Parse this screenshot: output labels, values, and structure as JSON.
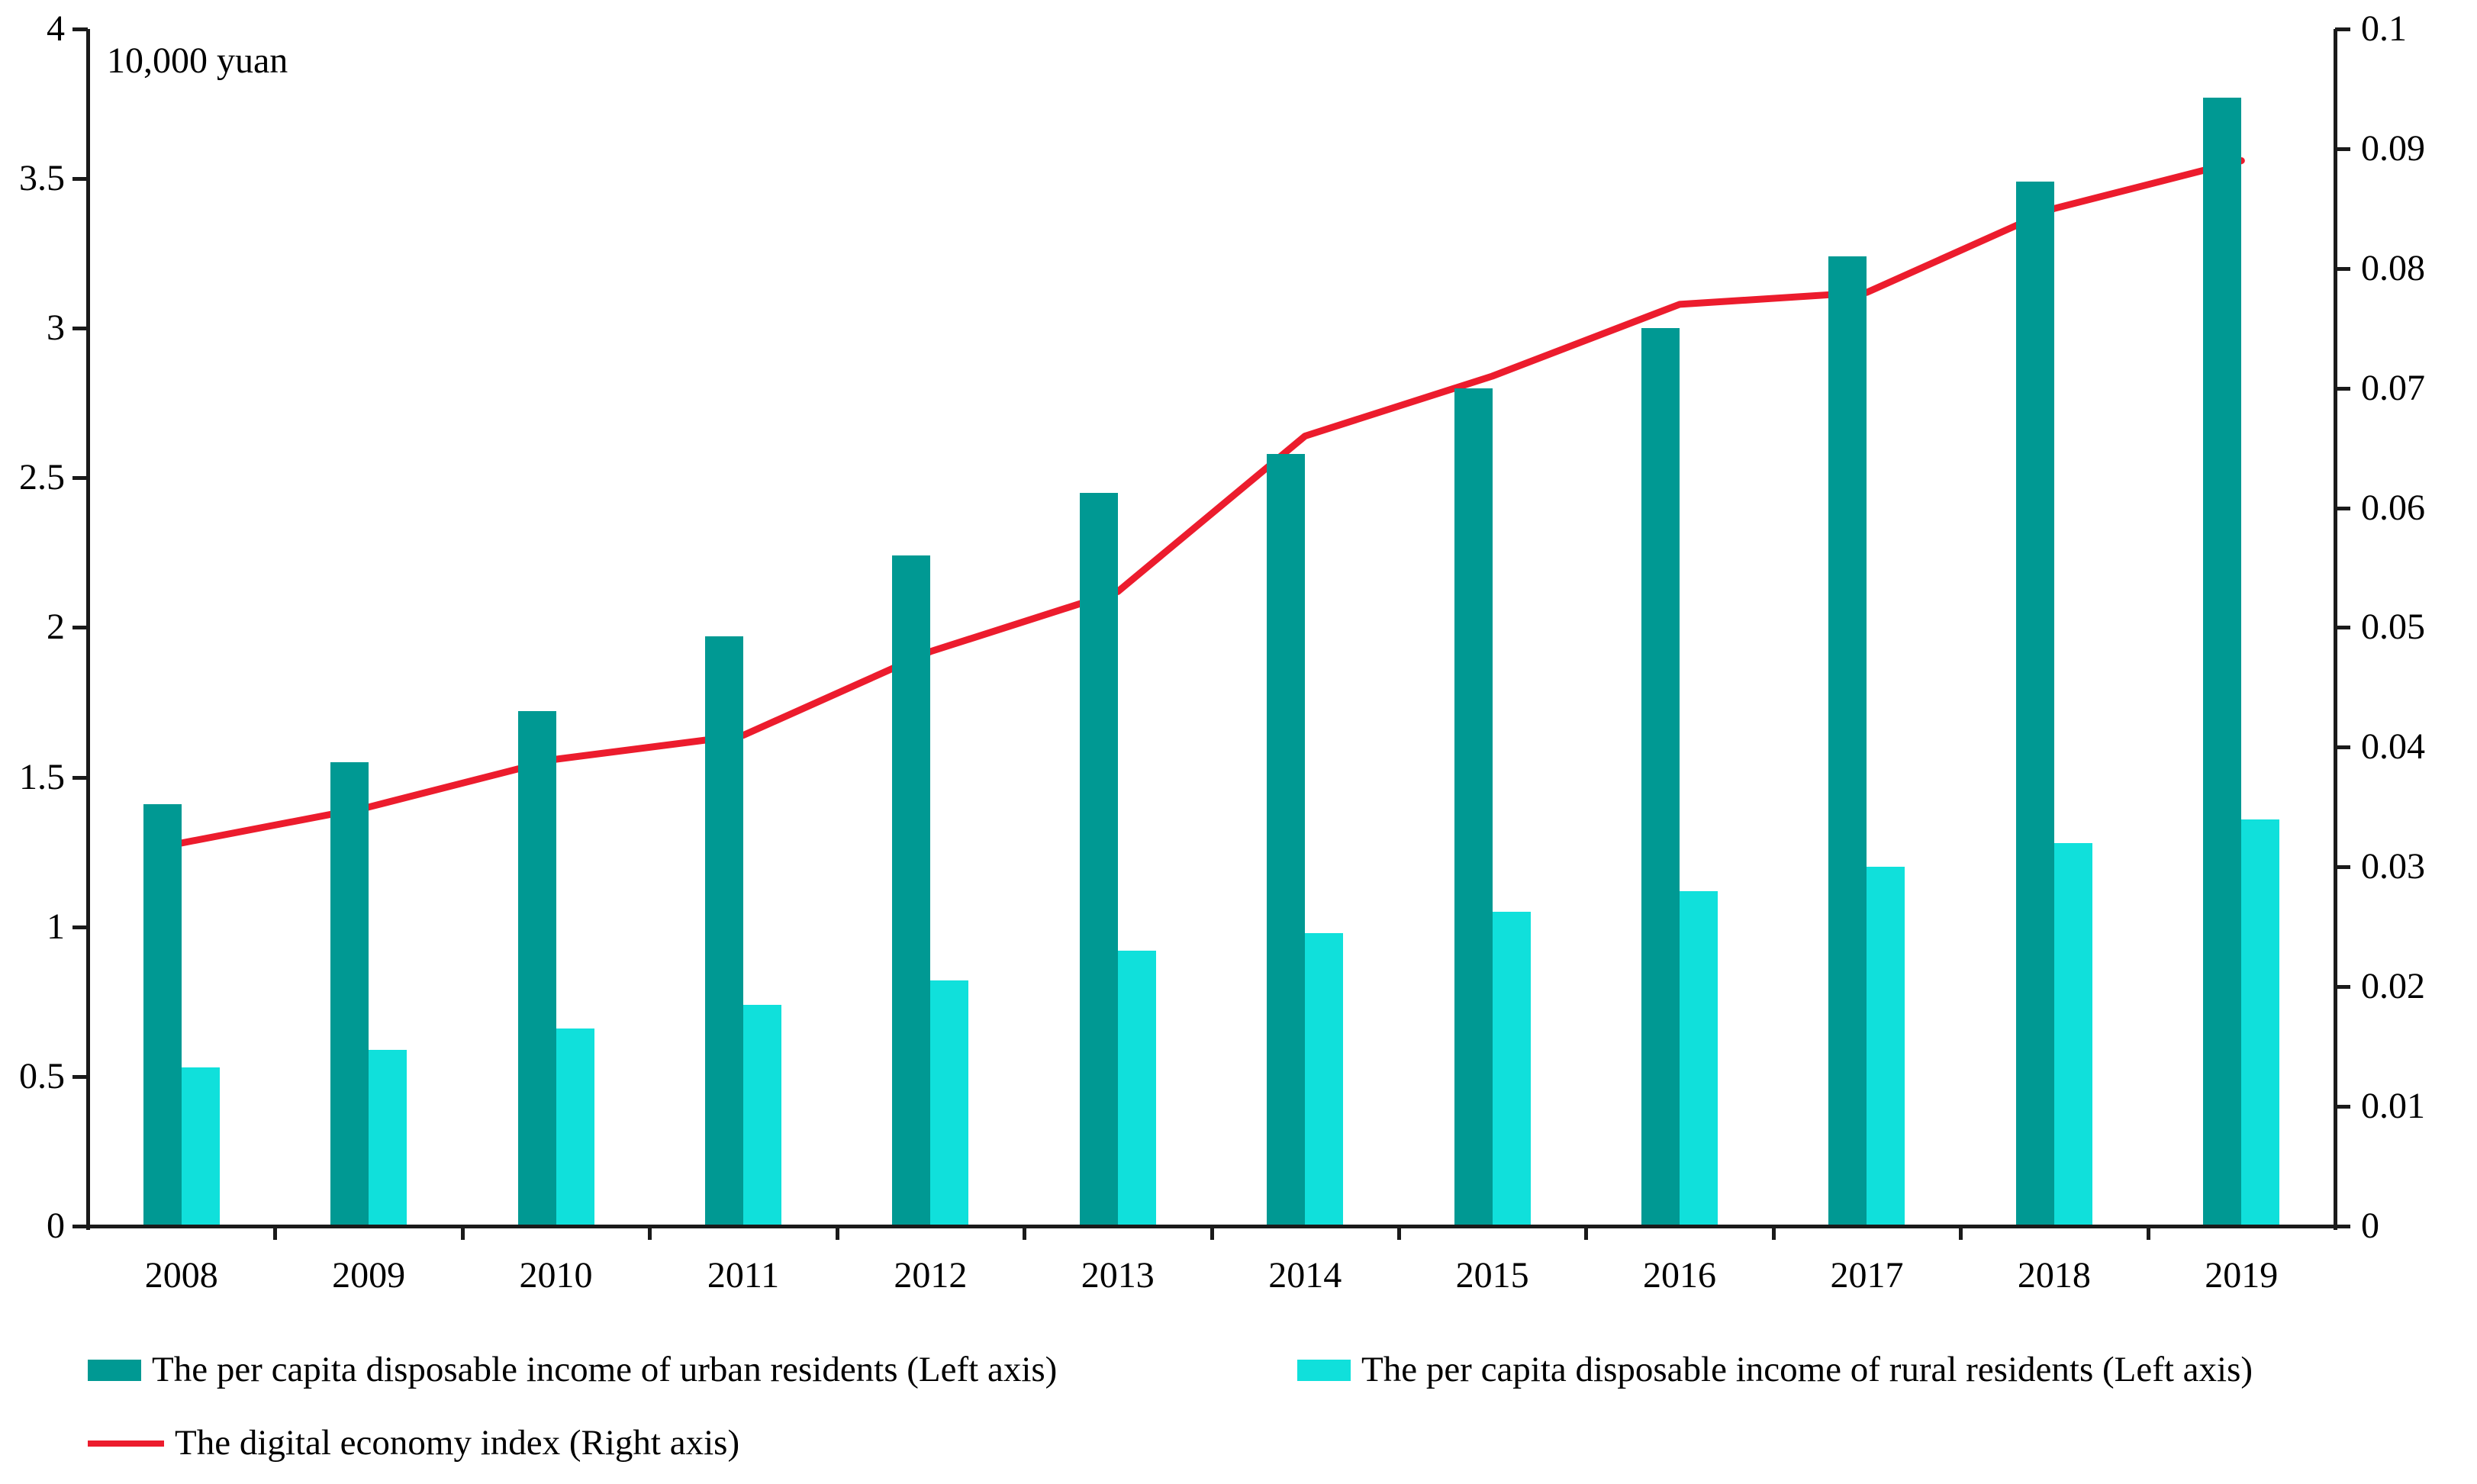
{
  "chart_data": {
    "type": "bar",
    "subtype": "grouped-bars-with-line-dual-axis",
    "unit_label": "10,000 yuan",
    "categories": [
      "2008",
      "2009",
      "2010",
      "2011",
      "2012",
      "2013",
      "2014",
      "2015",
      "2016",
      "2017",
      "2018",
      "2019"
    ],
    "series": [
      {
        "name": "The per capita disposable income of urban residents (Left axis)",
        "type": "bar",
        "axis": "left",
        "color": "#009993",
        "values": [
          1.41,
          1.55,
          1.72,
          1.97,
          2.24,
          2.45,
          2.58,
          2.8,
          3.0,
          3.24,
          3.49,
          3.77
        ]
      },
      {
        "name": "The per capita disposable income of rural residents (Left axis)",
        "type": "bar",
        "axis": "left",
        "color": "#10E0DB",
        "values": [
          0.53,
          0.59,
          0.66,
          0.74,
          0.82,
          0.92,
          0.98,
          1.05,
          1.12,
          1.2,
          1.28,
          1.36
        ]
      },
      {
        "name": "The digital economy index (Right axis)",
        "type": "line",
        "axis": "right",
        "color": "#EC1C2D",
        "values": [
          0.032,
          0.035,
          0.039,
          0.041,
          0.048,
          0.053,
          0.066,
          0.071,
          0.077,
          0.078,
          0.085,
          0.089
        ]
      }
    ],
    "left_axis": {
      "min": 0,
      "max": 4,
      "step": 0.5,
      "tick_labels": [
        "0",
        "0.5",
        "1",
        "1.5",
        "2",
        "2.5",
        "3",
        "3.5",
        "4"
      ]
    },
    "right_axis": {
      "min": 0,
      "max": 0.1,
      "step": 0.01,
      "tick_labels": [
        "0",
        "0.01",
        "0.02",
        "0.03",
        "0.04",
        "0.05",
        "0.06",
        "0.07",
        "0.08",
        "0.09",
        "0.1"
      ]
    },
    "grid": "off",
    "legend_position": "bottom",
    "axis_color": "#1a1a1a"
  }
}
